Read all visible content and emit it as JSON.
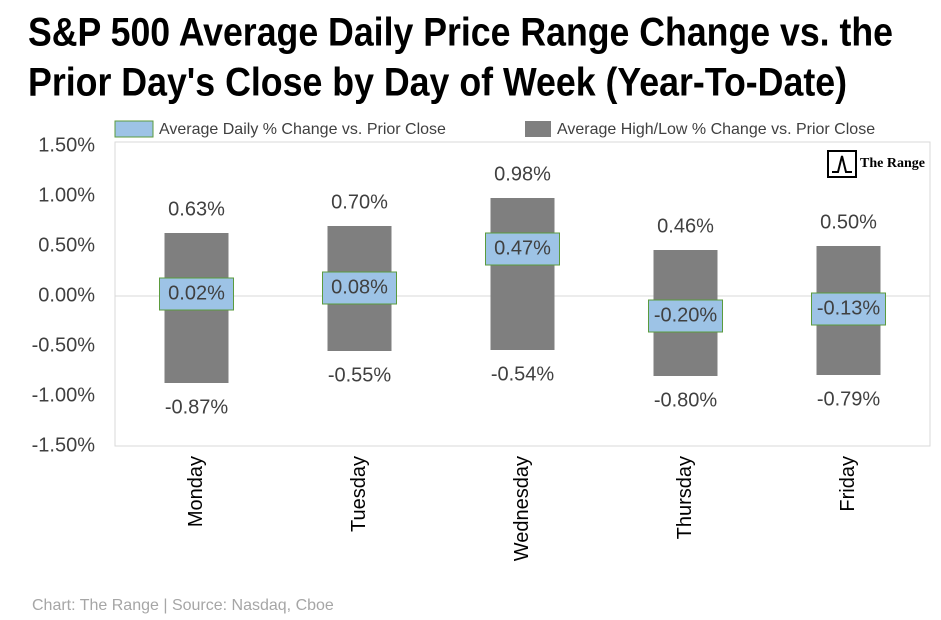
{
  "chart_data": {
    "type": "range",
    "title": [
      "S&P 500 Average Daily Price Range Change vs. the",
      "Prior Day's Close by Day of Week (Year-To-Date)"
    ],
    "categories": [
      "Monday",
      "Tuesday",
      "Wednesday",
      "Thursday",
      "Friday"
    ],
    "series": [
      {
        "name": "Average Daily % Change vs. Prior Close",
        "color": "#9dc3e6",
        "border_color": "#5b9b3d",
        "values": [
          0.02,
          0.08,
          0.47,
          -0.2,
          -0.13
        ],
        "value_labels": [
          "0.02%",
          "0.08%",
          "0.47%",
          "-0.20%",
          "-0.13%"
        ]
      },
      {
        "name": "Average High/Low % Change vs. Prior Close",
        "color": "#7f7f7f",
        "high": [
          0.63,
          0.7,
          0.98,
          0.46,
          0.5
        ],
        "high_labels": [
          "0.63%",
          "0.70%",
          "0.98%",
          "0.46%",
          "0.50%"
        ],
        "low": [
          -0.87,
          -0.55,
          -0.54,
          -0.8,
          -0.79
        ],
        "low_labels": [
          "-0.87%",
          "-0.55%",
          "-0.54%",
          "-0.80%",
          "-0.79%"
        ]
      }
    ],
    "ylim": [
      -1.5,
      1.5
    ],
    "yticks": [
      {
        "value": -1.5,
        "label": "-1.50%"
      },
      {
        "value": -1,
        "label": "-1.00%"
      },
      {
        "value": -0.5,
        "label": "-0.50%"
      },
      {
        "value": 0,
        "label": "0.00%"
      },
      {
        "value": 0.5,
        "label": "0.50%"
      },
      {
        "value": 1,
        "label": "1.00%"
      },
      {
        "value": 1.5,
        "label": "1.50%"
      }
    ],
    "grid": false,
    "legend": "top",
    "logo": "The Range",
    "source": "Chart: The Range | Source: Nasdaq, Cboe"
  }
}
